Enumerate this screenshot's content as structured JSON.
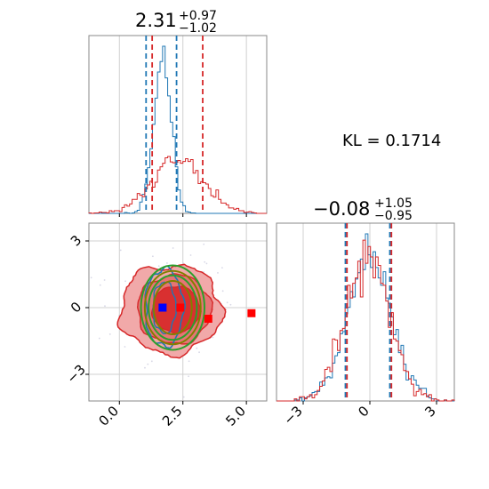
{
  "chart_data": {
    "type": "corner",
    "kl_annotation": "KL = 0.1714",
    "colors": {
      "blue": "#1f77b4",
      "red": "#d62728",
      "green": "#2ca02c",
      "olive": "#808000",
      "marker_blue": "#0000ff",
      "marker_red": "#ff0000"
    },
    "parameters": [
      {
        "title_main": "2.31",
        "title_sup": "+0.97",
        "title_sub": "−1.02",
        "median": 2.31,
        "plus": 0.97,
        "minus": 1.02,
        "xlim": [
          -1.2,
          5.8
        ],
        "ticks": [
          0.0,
          2.5,
          5.0
        ],
        "tick_labels": [
          "0.0",
          "2.5",
          "5.0"
        ]
      },
      {
        "title_main": "−0.08",
        "title_sup": "+1.05",
        "title_sub": "−0.95",
        "median": -0.08,
        "plus": 1.05,
        "minus": 0.95,
        "xlim": [
          -4.2,
          3.8
        ],
        "ticks": [
          -3,
          0,
          3
        ],
        "tick_labels": [
          "−3",
          "0",
          "3"
        ]
      }
    ],
    "joint_ylim": [
      -4.2,
      3.8
    ],
    "joint_yticks": [
      3,
      0,
      -3
    ],
    "joint_ytick_labels": [
      "3",
      "0",
      "−3"
    ],
    "series": [
      {
        "name": "",
        "color": "#1f77b4",
        "mean": [
          1.7,
          0.0
        ],
        "std": [
          0.35,
          1.0
        ],
        "quantiles_p0": [
          1.05,
          2.25
        ],
        "quantiles_p1": [
          -1.1,
          0.9
        ]
      },
      {
        "name": "",
        "color": "#d62728",
        "mean": [
          2.3,
          -0.08
        ],
        "std": [
          1.0,
          1.0
        ],
        "quantiles_p0": [
          1.29,
          3.28
        ],
        "quantiles_p1": [
          -1.03,
          0.97
        ]
      }
    ],
    "markers": [
      {
        "color": "#0000ff",
        "x": 1.7,
        "y": 0.0
      },
      {
        "color": "#ff0000",
        "x": 2.4,
        "y": 0.0
      },
      {
        "color": "#ff0000",
        "x": 3.5,
        "y": -0.5
      },
      {
        "color": "#ff0000",
        "x": 5.2,
        "y": -0.25
      }
    ],
    "grid": true
  }
}
